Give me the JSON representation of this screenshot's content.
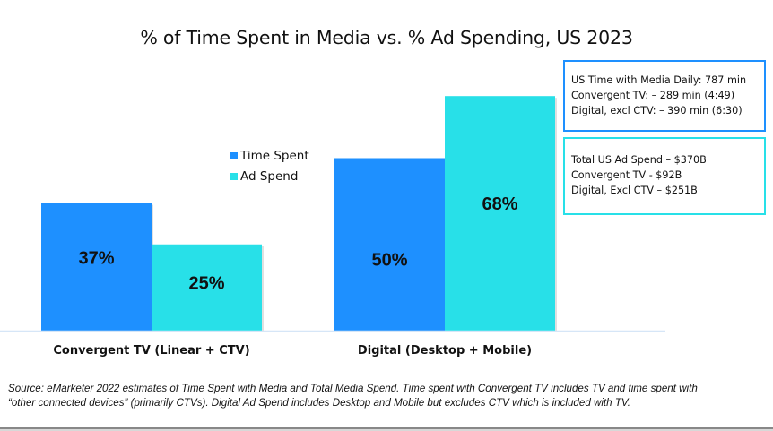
{
  "chart_data": {
    "type": "bar",
    "title": "% of Time Spent in Media vs. % Ad Spending, US 2023",
    "xlabel": "",
    "ylabel": "",
    "ylim": [
      0,
      100
    ],
    "grid": false,
    "legend_position": "center-left",
    "categories": [
      "Convergent TV (Linear + CTV)",
      "Digital (Desktop + Mobile)"
    ],
    "series": [
      {
        "name": "Time Spent",
        "color": "#1e90ff",
        "values": [
          37,
          50
        ],
        "labels": [
          "37%",
          "50%"
        ]
      },
      {
        "name": "Ad Spend",
        "color": "#28e0e8",
        "values": [
          25,
          68
        ],
        "labels": [
          "25%",
          "68%"
        ]
      }
    ]
  },
  "info_boxes": [
    {
      "border_color": "#1e90ff",
      "lines": [
        "US Time with Media Daily: 787 min",
        "Convergent TV: – 289 min (4:49)",
        "Digital, excl CTV: – 390 min (6:30)"
      ]
    },
    {
      "border_color": "#28e0e8",
      "lines": [
        "Total US Ad Spend – $370B",
        "Convergent TV - $92B",
        "Digital, Excl CTV – $251B"
      ]
    }
  ],
  "footnote": {
    "lines": [
      "Source: eMarketer 2022 estimates of Time Spent with Media and Total Media Spend.  Time spent with Convergent TV includes TV and time spent with",
      "“other connected devices”  (primarily CTVs).  Digital Ad Spend includes Desktop and Mobile but excludes CTV which is included with TV."
    ]
  }
}
